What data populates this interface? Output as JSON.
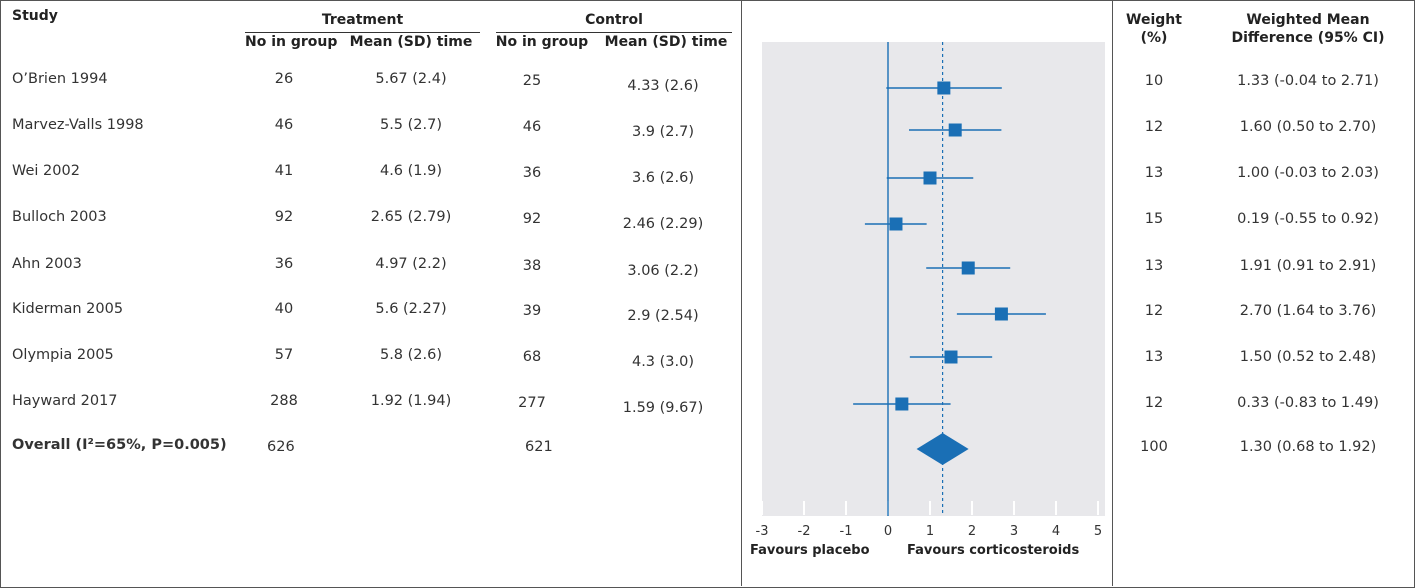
{
  "header": {
    "study": "Study",
    "treatment": "Treatment",
    "control": "Control",
    "no_in_group": "No in group",
    "mean_sd_time": "Mean (SD) time",
    "weight": "Weight",
    "weight_unit": "(%)",
    "wmd_line1": "Weighted Mean",
    "wmd_line2": "Difference (95% CI)"
  },
  "rows": [
    {
      "study": "O’Brien 1994",
      "t_n": "26",
      "t_mean": "5.67 (2.4)",
      "c_n": "25",
      "c_mean": "4.33 (2.6)",
      "weight": "10",
      "wmd": "1.33 (-0.04 to 2.71)"
    },
    {
      "study": "Marvez-Valls 1998",
      "t_n": "46",
      "t_mean": "5.5 (2.7)",
      "c_n": "46",
      "c_mean": "3.9 (2.7)",
      "weight": "12",
      "wmd": "1.60 (0.50 to 2.70)"
    },
    {
      "study": "Wei 2002",
      "t_n": "41",
      "t_mean": "4.6 (1.9)",
      "c_n": "36",
      "c_mean": "3.6 (2.6)",
      "weight": "13",
      "wmd": "1.00 (-0.03 to 2.03)"
    },
    {
      "study": "Bulloch 2003",
      "t_n": "92",
      "t_mean": "2.65 (2.79)",
      "c_n": "92",
      "c_mean": "2.46 (2.29)",
      "weight": "15",
      "wmd": "0.19 (-0.55 to 0.92)"
    },
    {
      "study": "Ahn 2003",
      "t_n": "36",
      "t_mean": "4.97 (2.2)",
      "c_n": "38",
      "c_mean": "3.06 (2.2)",
      "weight": "13",
      "wmd": "1.91 (0.91 to 2.91)"
    },
    {
      "study": "Kiderman 2005",
      "t_n": "40",
      "t_mean": "5.6 (2.27)",
      "c_n": "39",
      "c_mean": "2.9 (2.54)",
      "weight": "12",
      "wmd": "2.70 (1.64 to 3.76)"
    },
    {
      "study": "Olympia 2005",
      "t_n": "57",
      "t_mean": "5.8 (2.6)",
      "c_n": "68",
      "c_mean": "4.3 (3.0)",
      "weight": "13",
      "wmd": "1.50 (0.52 to 2.48)"
    },
    {
      "study": "Hayward 2017",
      "t_n": "288",
      "t_mean": "1.92 (1.94)",
      "c_n": "277",
      "c_mean": "1.59 (9.67)",
      "weight": "12",
      "wmd": "0.33 (-0.83 to 1.49)"
    }
  ],
  "overall": {
    "label": "Overall (I²=65%, P=0.005)",
    "t_n": "626",
    "c_n": "621",
    "weight": "100",
    "wmd": "1.30 (0.68 to 1.92)"
  },
  "chart_data": {
    "type": "forest",
    "studies": [
      "O’Brien 1994",
      "Marvez-Valls 1998",
      "Wei 2002",
      "Bulloch 2003",
      "Ahn 2003",
      "Kiderman 2005",
      "Olympia 2005",
      "Hayward 2017"
    ],
    "estimates": [
      1.33,
      1.6,
      1.0,
      0.19,
      1.91,
      2.7,
      1.5,
      0.33
    ],
    "ci_low": [
      -0.04,
      0.5,
      -0.03,
      -0.55,
      0.91,
      1.64,
      0.52,
      -0.83
    ],
    "ci_high": [
      2.71,
      2.7,
      2.03,
      0.92,
      2.91,
      3.76,
      2.48,
      1.49
    ],
    "weights": [
      10,
      12,
      13,
      15,
      13,
      12,
      13,
      12
    ],
    "overall": {
      "estimate": 1.3,
      "ci_low": 0.68,
      "ci_high": 1.92
    },
    "xlim": [
      -3,
      5
    ],
    "xticks": [
      -3,
      -2,
      -1,
      0,
      1,
      2,
      3,
      4,
      5
    ],
    "null_line": 0,
    "left_label": "Favours placebo",
    "right_label": "Favours corticosteroids",
    "colors": {
      "marker": "#1a6fb5",
      "background": "#e8e8eb",
      "axis": "#ffffff"
    }
  }
}
